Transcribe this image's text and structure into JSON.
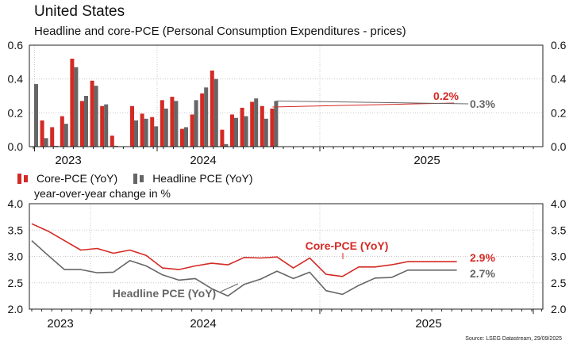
{
  "title": "United States",
  "subtitle": "Headline and core-PCE (Personal Consumption Expenditures - prices)",
  "source": "Source: LSEG Datastream, 29/09/2025",
  "colors": {
    "core": "#d42a25",
    "headline": "#666666",
    "grid": "#c8c8c8"
  },
  "chart_data": [
    {
      "type": "bar",
      "title": "Headline and core-PCE (Personal Consumption Expenditures - prices)",
      "ylim": [
        0,
        0.6
      ],
      "yticks": [
        "0.0",
        "0.2",
        "0.4",
        "0.6"
      ],
      "year_labels": [
        "2023",
        "2024",
        "2025"
      ],
      "categories": [
        "2022-12",
        "2023-01",
        "2023-02",
        "2023-03",
        "2023-04",
        "2023-05",
        "2023-06",
        "2023-07",
        "2023-08",
        "2023-09",
        "2023-10",
        "2023-11",
        "2023-12",
        "2024-01",
        "2024-02",
        "2024-03",
        "2024-04",
        "2024-05",
        "2024-06",
        "2024-07",
        "2024-08",
        "2024-09",
        "2024-10",
        "2024-11",
        "2024-12",
        "2025-01",
        "2025-02",
        "2025-03",
        "2025-04",
        "2025-05",
        "2025-06",
        "2025-07",
        "2025-08"
      ],
      "series": [
        {
          "name": "Core-PCE (YoY)",
          "values": [
            null,
            0.155,
            0.115,
            0.18,
            0.52,
            0.27,
            0.39,
            0.24,
            0.065,
            null,
            0.24,
            0.195,
            0.175,
            0.275,
            0.295,
            0.105,
            0.19,
            0.315,
            0.45,
            0.1,
            0.19,
            0.23,
            0.265,
            0.24,
            0.225,
            null,
            null,
            null,
            null,
            null,
            null,
            null,
            null
          ]
        },
        {
          "name": "Headline PCE (YoY)",
          "values": [
            0.37,
            0.05,
            0.005,
            0.135,
            0.47,
            0.3,
            0.36,
            0.25,
            0.005,
            null,
            0.155,
            0.165,
            0.12,
            0.225,
            0.27,
            0.115,
            0.275,
            0.35,
            0.4,
            0.015,
            0.17,
            0.18,
            0.285,
            0.165,
            0.27,
            null,
            null,
            null,
            null,
            null,
            null,
            null,
            null
          ]
        }
      ],
      "annotations": [
        {
          "series": "Core-PCE (YoY)",
          "text": "0.2%"
        },
        {
          "series": "Headline PCE (YoY)",
          "text": "0.3%"
        }
      ],
      "legend": [
        "Core-PCE (YoY)",
        "Headline PCE (YoY)"
      ]
    },
    {
      "type": "line",
      "ylabel": "year-over-year change in %",
      "ylim": [
        2.0,
        4.0
      ],
      "yticks": [
        "2.0",
        "2.5",
        "3.0",
        "3.5",
        "4.0"
      ],
      "year_labels": [
        "2023",
        "2024",
        "2025"
      ],
      "x": [
        "2022-12",
        "2023-01",
        "2023-02",
        "2023-03",
        "2023-04",
        "2023-05",
        "2023-06",
        "2023-07",
        "2023-08",
        "2023-09",
        "2023-10",
        "2023-11",
        "2023-12",
        "2024-01",
        "2024-02",
        "2024-03",
        "2024-04",
        "2024-05",
        "2024-06",
        "2024-07",
        "2024-08",
        "2024-09",
        "2024-10",
        "2024-11",
        "2024-12",
        "2025-01",
        "2025-02"
      ],
      "series": [
        {
          "name": "Core-PCE (YoY)",
          "label": "Core-PCE (YoY)",
          "end_label": "2.9%",
          "values": [
            3.62,
            3.48,
            3.3,
            3.12,
            3.15,
            3.06,
            3.12,
            3.02,
            2.78,
            2.75,
            2.82,
            2.87,
            2.84,
            2.98,
            2.97,
            2.99,
            2.78,
            2.97,
            2.66,
            2.62,
            2.8,
            2.8,
            2.84,
            2.9,
            2.9,
            2.9,
            2.9
          ]
        },
        {
          "name": "Headline PCE (YoY)",
          "label": "Headline PCE (YoY)",
          "end_label": "2.7%",
          "values": [
            3.3,
            3.02,
            2.75,
            2.75,
            2.69,
            2.7,
            2.92,
            2.82,
            2.65,
            2.55,
            2.58,
            2.39,
            2.25,
            2.47,
            2.57,
            2.72,
            2.58,
            2.7,
            2.35,
            2.28,
            2.45,
            2.59,
            2.6,
            2.74,
            2.74,
            2.74,
            2.74
          ]
        }
      ]
    }
  ]
}
